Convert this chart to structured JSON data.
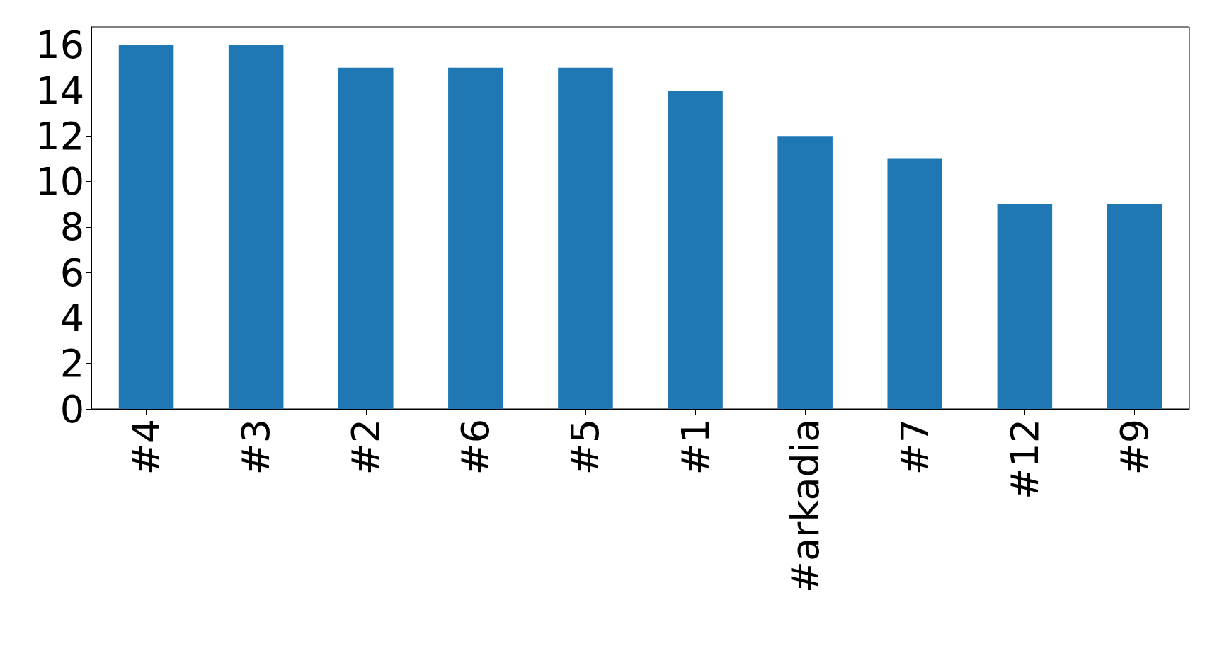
{
  "chart_data": {
    "type": "bar",
    "categories": [
      "#4",
      "#3",
      "#2",
      "#6",
      "#5",
      "#1",
      "#arkadia",
      "#7",
      "#12",
      "#9"
    ],
    "values": [
      16,
      16,
      15,
      15,
      15,
      14,
      12,
      11,
      9,
      9
    ],
    "color": "#1f77b4",
    "ylim": [
      0,
      16.8
    ],
    "yticks": [
      0,
      2,
      4,
      6,
      8,
      10,
      12,
      14,
      16
    ]
  }
}
